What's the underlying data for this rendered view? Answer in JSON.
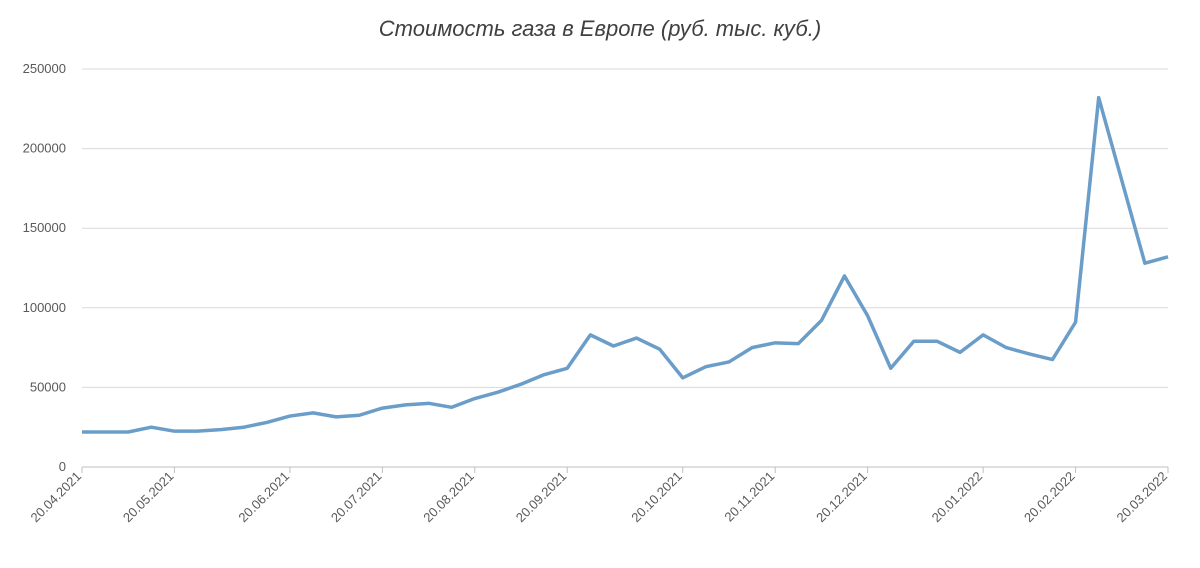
{
  "chart_data": {
    "type": "line",
    "title": "Стоимость газа в Европе (руб. тыс. куб.)",
    "categories": [
      "20.04.2021",
      null,
      null,
      null,
      "20.05.2021",
      null,
      null,
      null,
      null,
      "20.06.2021",
      null,
      null,
      null,
      "20.07.2021",
      null,
      null,
      null,
      "20.08.2021",
      null,
      null,
      null,
      "20.09.2021",
      null,
      null,
      null,
      null,
      "20.10.2021",
      null,
      null,
      null,
      "20.11.2021",
      null,
      null,
      null,
      "20.12.2021",
      null,
      null,
      null,
      null,
      "20.01.2022",
      null,
      null,
      null,
      "20.02.2022",
      null,
      null,
      null,
      "20.03.2022"
    ],
    "series": [
      {
        "name": "Стоимость газа",
        "color": "#6b9dc9",
        "values": [
          22000,
          22000,
          22000,
          25000,
          22500,
          22500,
          23500,
          25000,
          28000,
          32000,
          34000,
          31500,
          32500,
          37000,
          39000,
          40000,
          37500,
          43000,
          47000,
          52000,
          58000,
          62000,
          83000,
          76000,
          81000,
          74000,
          56000,
          63000,
          66000,
          75000,
          78000,
          77500,
          92000,
          120000,
          95000,
          62000,
          79000,
          79000,
          72000,
          83000,
          75000,
          71000,
          67500,
          91000,
          232000,
          180000,
          128000,
          132000
        ]
      }
    ],
    "ylim": [
      0,
      250000
    ],
    "yticks": [
      0,
      50000,
      100000,
      150000,
      200000,
      250000
    ],
    "grid": true
  }
}
